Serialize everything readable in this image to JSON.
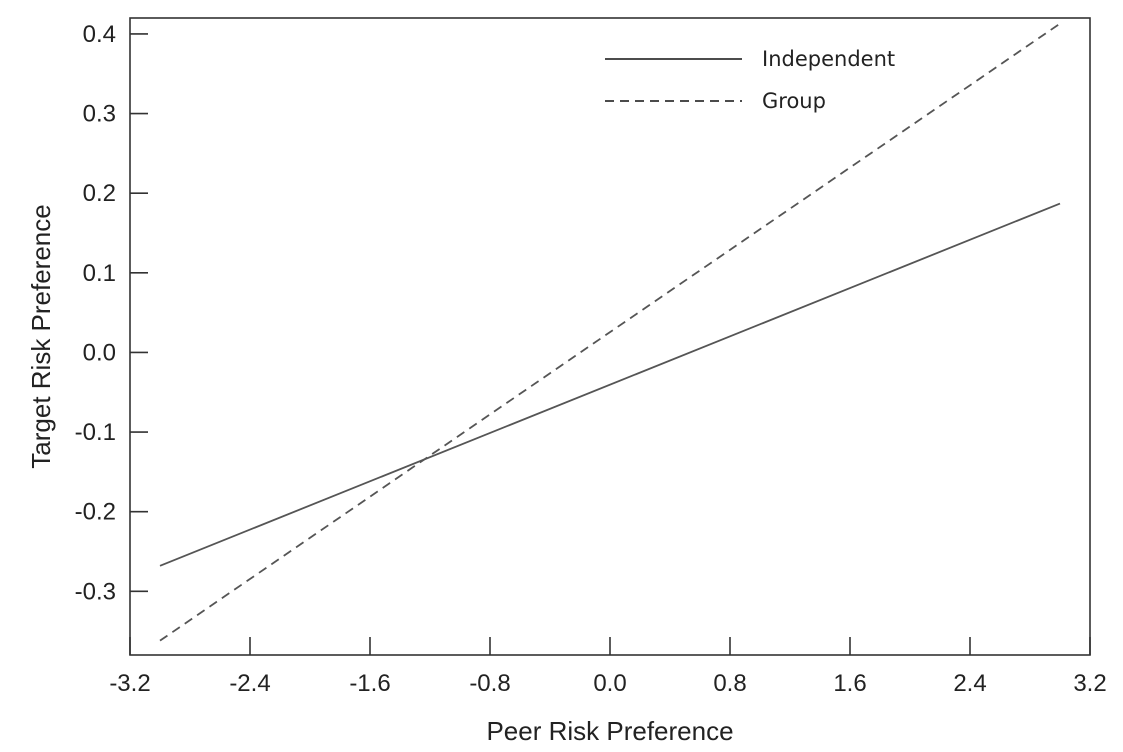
{
  "chart_data": {
    "type": "line",
    "title": "",
    "xlabel": "Peer Risk Preference",
    "ylabel": "Target Risk Preference",
    "xlim": [
      -3.2,
      3.2
    ],
    "ylim": [
      -0.38,
      0.42
    ],
    "x_ticks": [
      -3.2,
      -2.4,
      -1.6,
      -0.8,
      0.0,
      0.8,
      1.6,
      2.4,
      3.2
    ],
    "x_tick_labels": [
      "-3.2",
      "-2.4",
      "-1.6",
      "-0.8",
      "0.0",
      "0.8",
      "1.6",
      "2.4",
      "3.2"
    ],
    "y_ticks": [
      -0.3,
      -0.2,
      -0.1,
      0.0,
      0.1,
      0.2,
      0.3,
      0.4
    ],
    "y_tick_labels": [
      "-0.3",
      "-0.2",
      "-0.1",
      "0.0",
      "0.1",
      "0.2",
      "0.3",
      "0.4"
    ],
    "grid": false,
    "legend_position": "top-right",
    "series": [
      {
        "name": "Independent",
        "style": "solid",
        "color": "#555555",
        "x": [
          -3.0,
          3.0
        ],
        "y": [
          -0.268,
          0.187
        ]
      },
      {
        "name": "Group",
        "style": "dashed",
        "color": "#555555",
        "x": [
          -3.0,
          3.0
        ],
        "y": [
          -0.362,
          0.413
        ]
      }
    ]
  }
}
